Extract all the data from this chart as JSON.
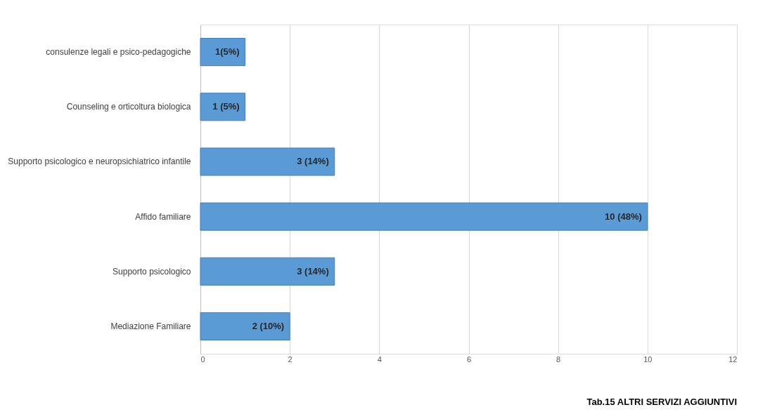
{
  "chart_data": {
    "type": "bar",
    "orientation": "horizontal",
    "categories": [
      "consulenze legali e psico-pedagogiche",
      "Counseling e orticoltura biologica",
      "Supporto psicologico e neuropsichiatrico infantile",
      "Affido familiare",
      "Supporto psicologico",
      "Mediazione Familiare"
    ],
    "values": [
      1,
      1,
      3,
      10,
      3,
      2
    ],
    "value_labels": [
      "1(5%)",
      "1 (5%)",
      "3 (14%)",
      "10 (48%)",
      "3 (14%)",
      "2 (10%)"
    ],
    "color": "#5b9bd5",
    "xlim": [
      0,
      12
    ],
    "xticks": [
      0,
      2,
      4,
      6,
      8,
      10,
      12
    ],
    "grid": "x",
    "annotations": [
      "Tab.15 ALTRI SERVIZI AGGIUNTIVI"
    ]
  }
}
